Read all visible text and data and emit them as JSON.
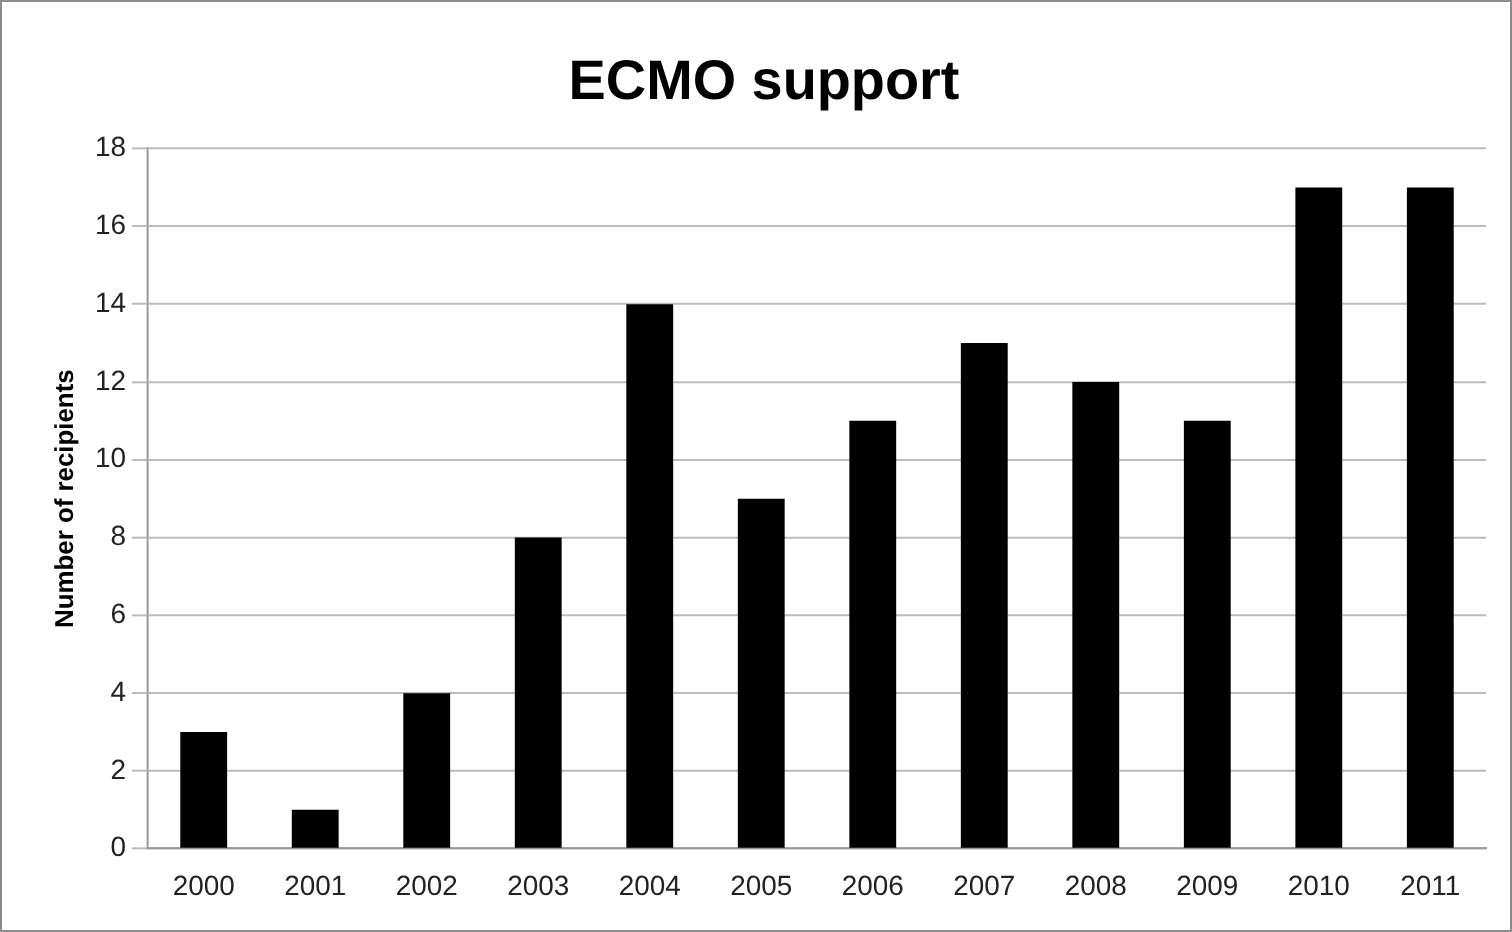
{
  "chart_data": {
    "type": "bar",
    "title": "ECMO support",
    "ylabel": "Number of recipients",
    "categories": [
      "2000",
      "2001",
      "2002",
      "2003",
      "2004",
      "2005",
      "2006",
      "2007",
      "2008",
      "2009",
      "2010",
      "2011"
    ],
    "values": [
      3,
      1,
      4,
      8,
      14,
      9,
      11,
      13,
      12,
      11,
      17,
      17
    ],
    "color": "#000000",
    "ylim": [
      0,
      18
    ],
    "yticks": [
      0,
      2,
      4,
      6,
      8,
      10,
      12,
      14,
      16,
      18
    ],
    "grid": "y",
    "legend": false
  }
}
